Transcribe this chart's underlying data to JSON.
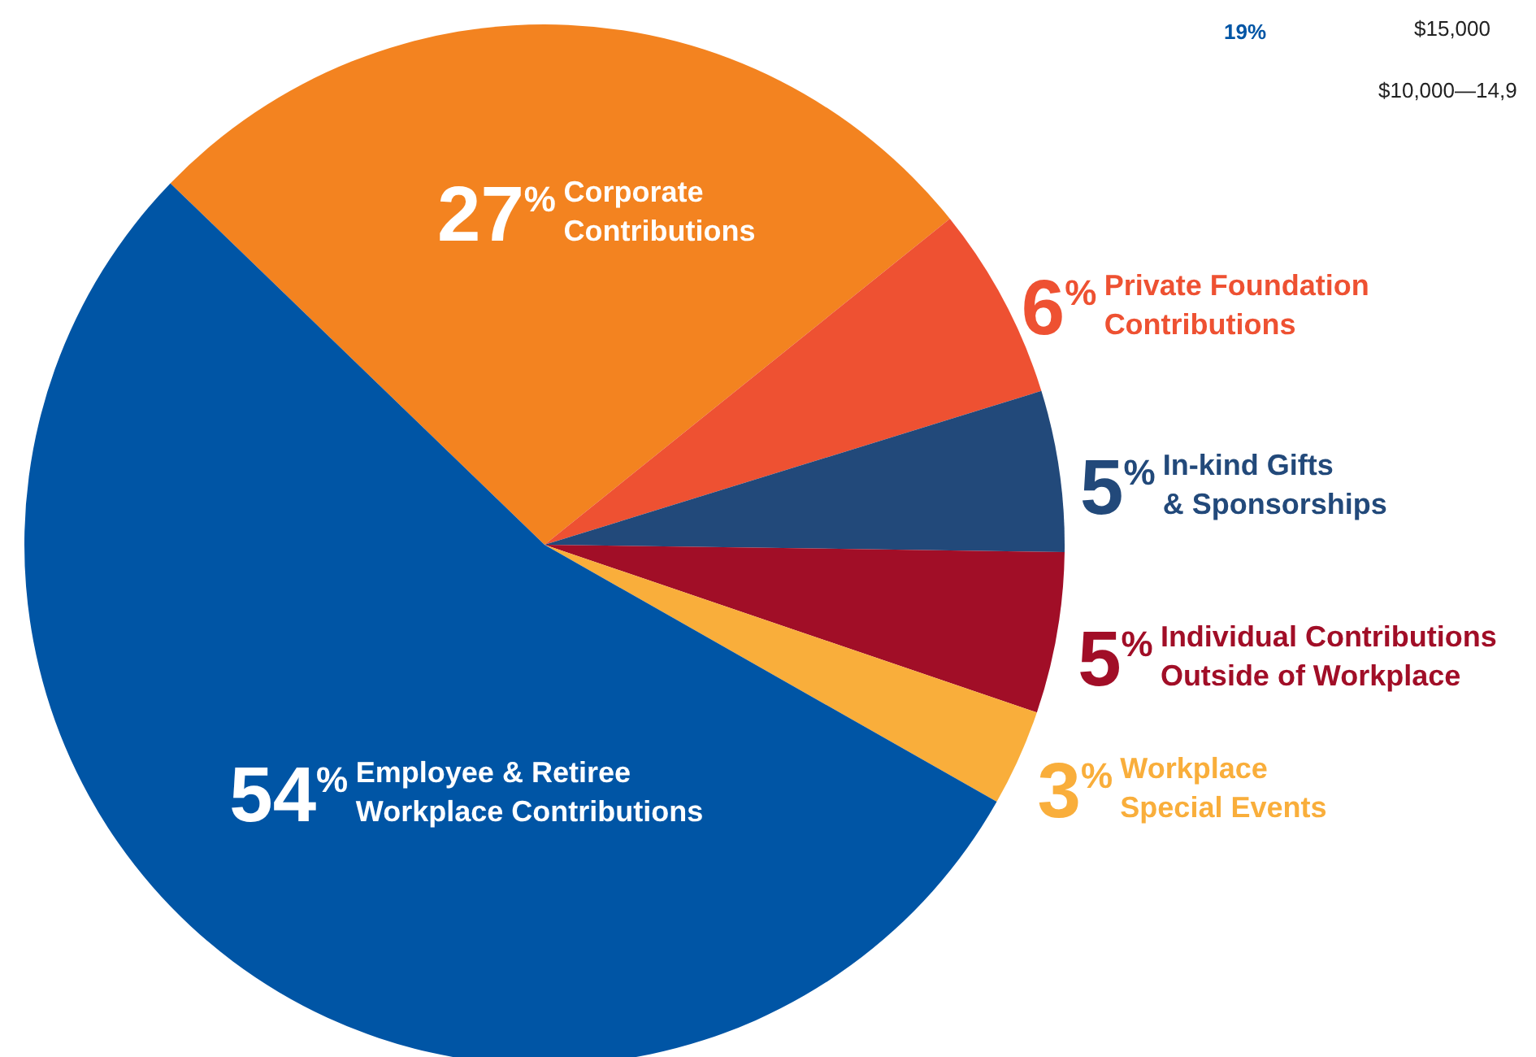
{
  "chart_data": {
    "type": "pie",
    "categories": [
      "Corporate\nContributions",
      "Private Foundation\nContributions",
      "In-kind Gifts\n& Sponsorships",
      "Individual Contributions\nOutside of Workplace",
      "Workplace\nSpecial Events",
      "Employee & Retiree\nWorkplace Contributions"
    ],
    "values": [
      27,
      6,
      5,
      5,
      3,
      54
    ],
    "value_labels": [
      "27$^{%}$",
      "6$^{%}$",
      "5$^{%}$",
      "5$^{%}$",
      "3$^{%}$",
      "54$^{%}$"
    ],
    "colors": [
      "#f38320",
      "#ee5132",
      "#22497a",
      "#a10e27",
      "#f9ae3b",
      "#0055a5"
    ],
    "annotations": [
      "19%",
      "$10,000—14,9",
      "$15,000"
    ]
  }
}
